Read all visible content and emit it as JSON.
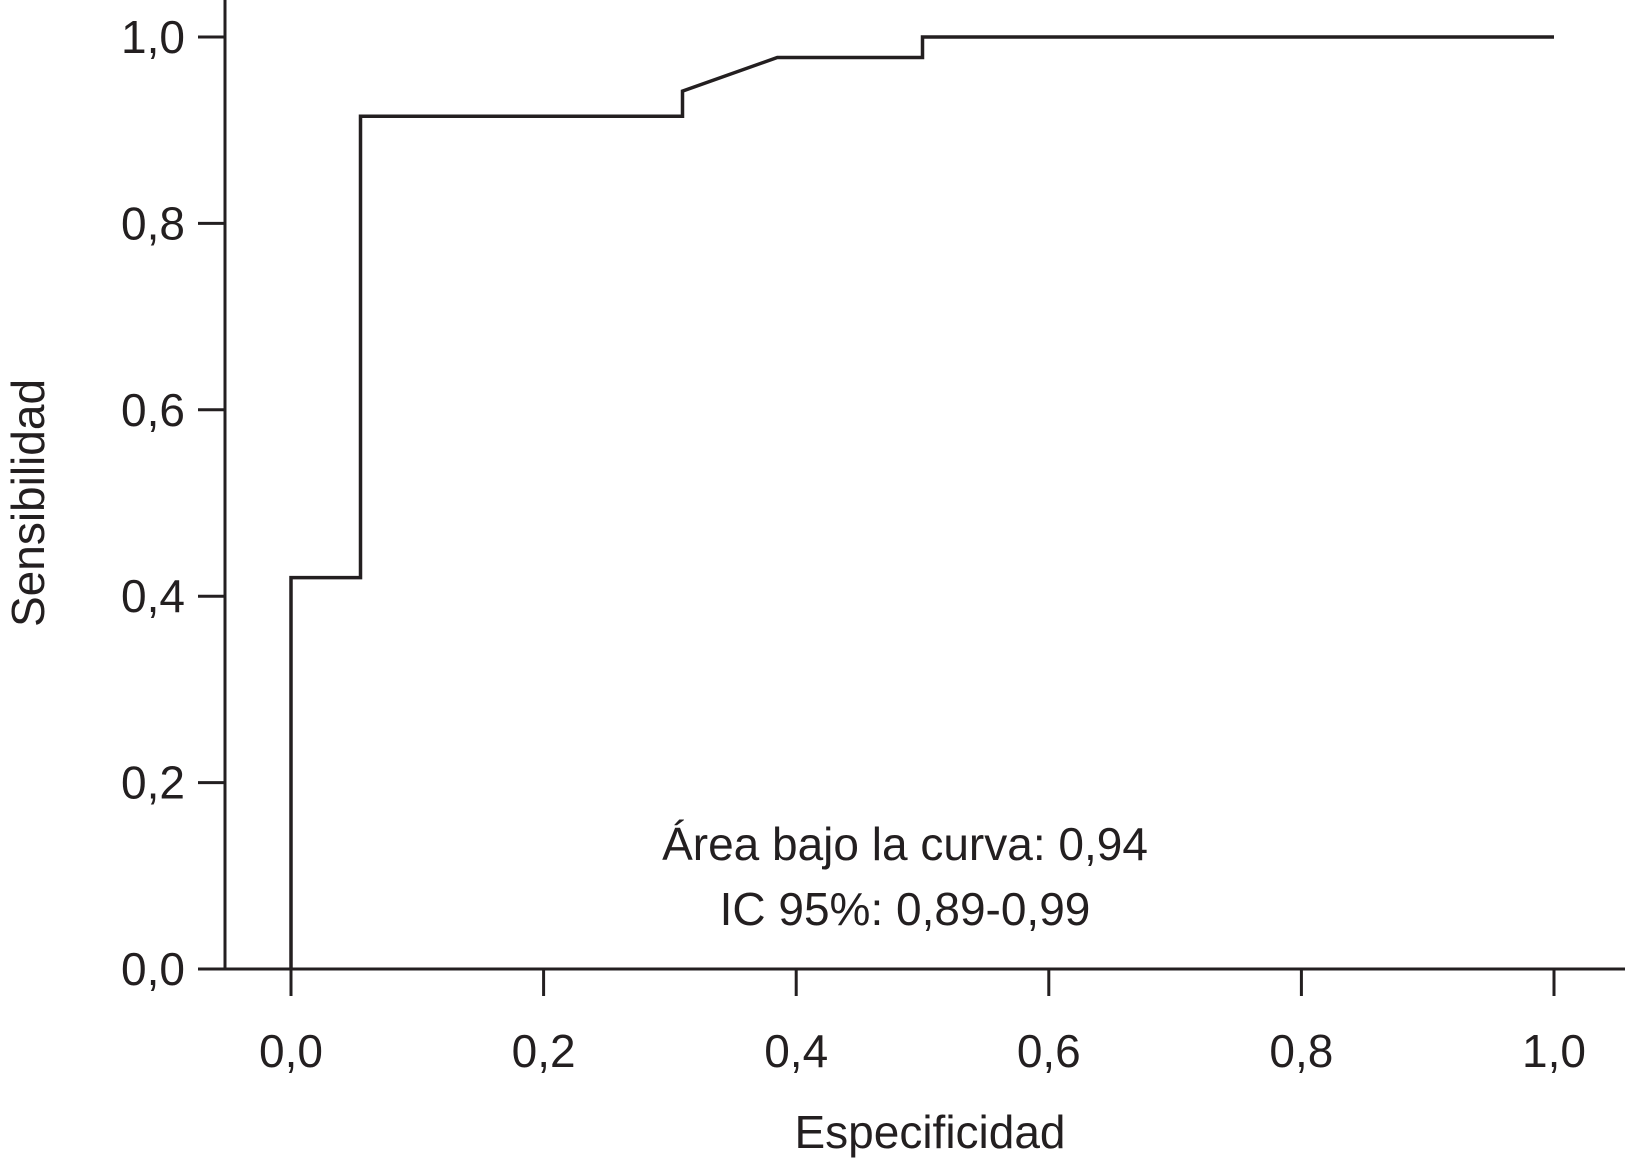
{
  "chart_data": {
    "type": "line",
    "title": "",
    "xlabel": "Especificidad",
    "ylabel": "Sensibilidad",
    "xlim": [
      -0.05,
      1.05
    ],
    "ylim": [
      0,
      1.0
    ],
    "x_ticks": [
      {
        "value": 0.0,
        "label": "0,0"
      },
      {
        "value": 0.2,
        "label": "0,2"
      },
      {
        "value": 0.4,
        "label": "0,4"
      },
      {
        "value": 0.6,
        "label": "0,6"
      },
      {
        "value": 0.8,
        "label": "0,8"
      },
      {
        "value": 1.0,
        "label": "1,0"
      }
    ],
    "y_ticks": [
      {
        "value": 0.0,
        "label": "0,0"
      },
      {
        "value": 0.2,
        "label": "0,2"
      },
      {
        "value": 0.4,
        "label": "0,4"
      },
      {
        "value": 0.6,
        "label": "0,6"
      },
      {
        "value": 0.8,
        "label": "0,8"
      },
      {
        "value": 1.0,
        "label": "1,0"
      }
    ],
    "grid": false,
    "legend": "none",
    "series": [
      {
        "x": [
          0.0,
          0.0,
          0.055,
          0.055,
          0.31,
          0.31,
          0.385,
          0.5,
          0.5,
          1.0
        ],
        "y": [
          0.0,
          0.42,
          0.42,
          0.915,
          0.915,
          0.942,
          0.978,
          0.978,
          1.0,
          1.0
        ]
      }
    ],
    "annotations": [
      "Área bajo la curva: 0,94",
      "IC 95%: 0,89-0,99"
    ],
    "line_color": "#231f20"
  }
}
